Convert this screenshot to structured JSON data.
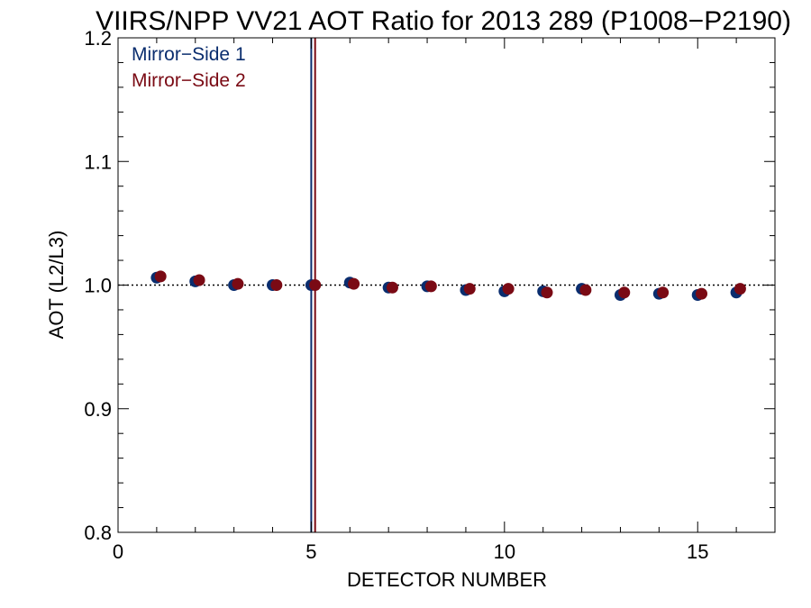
{
  "chart_data": {
    "type": "scatter",
    "title": "VIIRS/NPP VV21 AOT Ratio for 2013 289 (P1008−P2190)",
    "xlabel": "DETECTOR NUMBER",
    "ylabel": "AOT (L2/L3)",
    "xlim": [
      0,
      17
    ],
    "ylim": [
      0.8,
      1.2
    ],
    "xticks": [
      0,
      5,
      10,
      15
    ],
    "xtick_labels": [
      "0",
      "5",
      "10",
      "15"
    ],
    "yticks": [
      0.8,
      0.9,
      1.0,
      1.1,
      1.2
    ],
    "ytick_labels": [
      "0.8",
      "0.9",
      "1.0",
      "1.1",
      "1.2"
    ],
    "reference_line_y": 1.0,
    "legend_placement": "top-left",
    "series": [
      {
        "name": "Mirror−Side 1",
        "color": "#0a2d6e",
        "marker_line_x": 5,
        "x": [
          1,
          2,
          3,
          4,
          5,
          6,
          7,
          8,
          9,
          10,
          11,
          12,
          13,
          14,
          15,
          16
        ],
        "values": [
          1.006,
          1.003,
          1.0,
          1.0,
          1.0,
          1.002,
          0.998,
          0.999,
          0.996,
          0.995,
          0.995,
          0.997,
          0.992,
          0.993,
          0.992,
          0.994
        ]
      },
      {
        "name": "Mirror−Side 2",
        "color": "#7a0a14",
        "marker_line_x": 5.1,
        "x": [
          1.1,
          2.1,
          3.1,
          4.1,
          5.1,
          6.1,
          7.1,
          8.1,
          9.1,
          10.1,
          11.1,
          12.1,
          13.1,
          14.1,
          15.1,
          16.1
        ],
        "values": [
          1.007,
          1.004,
          1.001,
          1.0,
          1.0,
          1.001,
          0.998,
          0.999,
          0.997,
          0.997,
          0.994,
          0.996,
          0.994,
          0.994,
          0.993,
          0.997
        ]
      }
    ]
  }
}
